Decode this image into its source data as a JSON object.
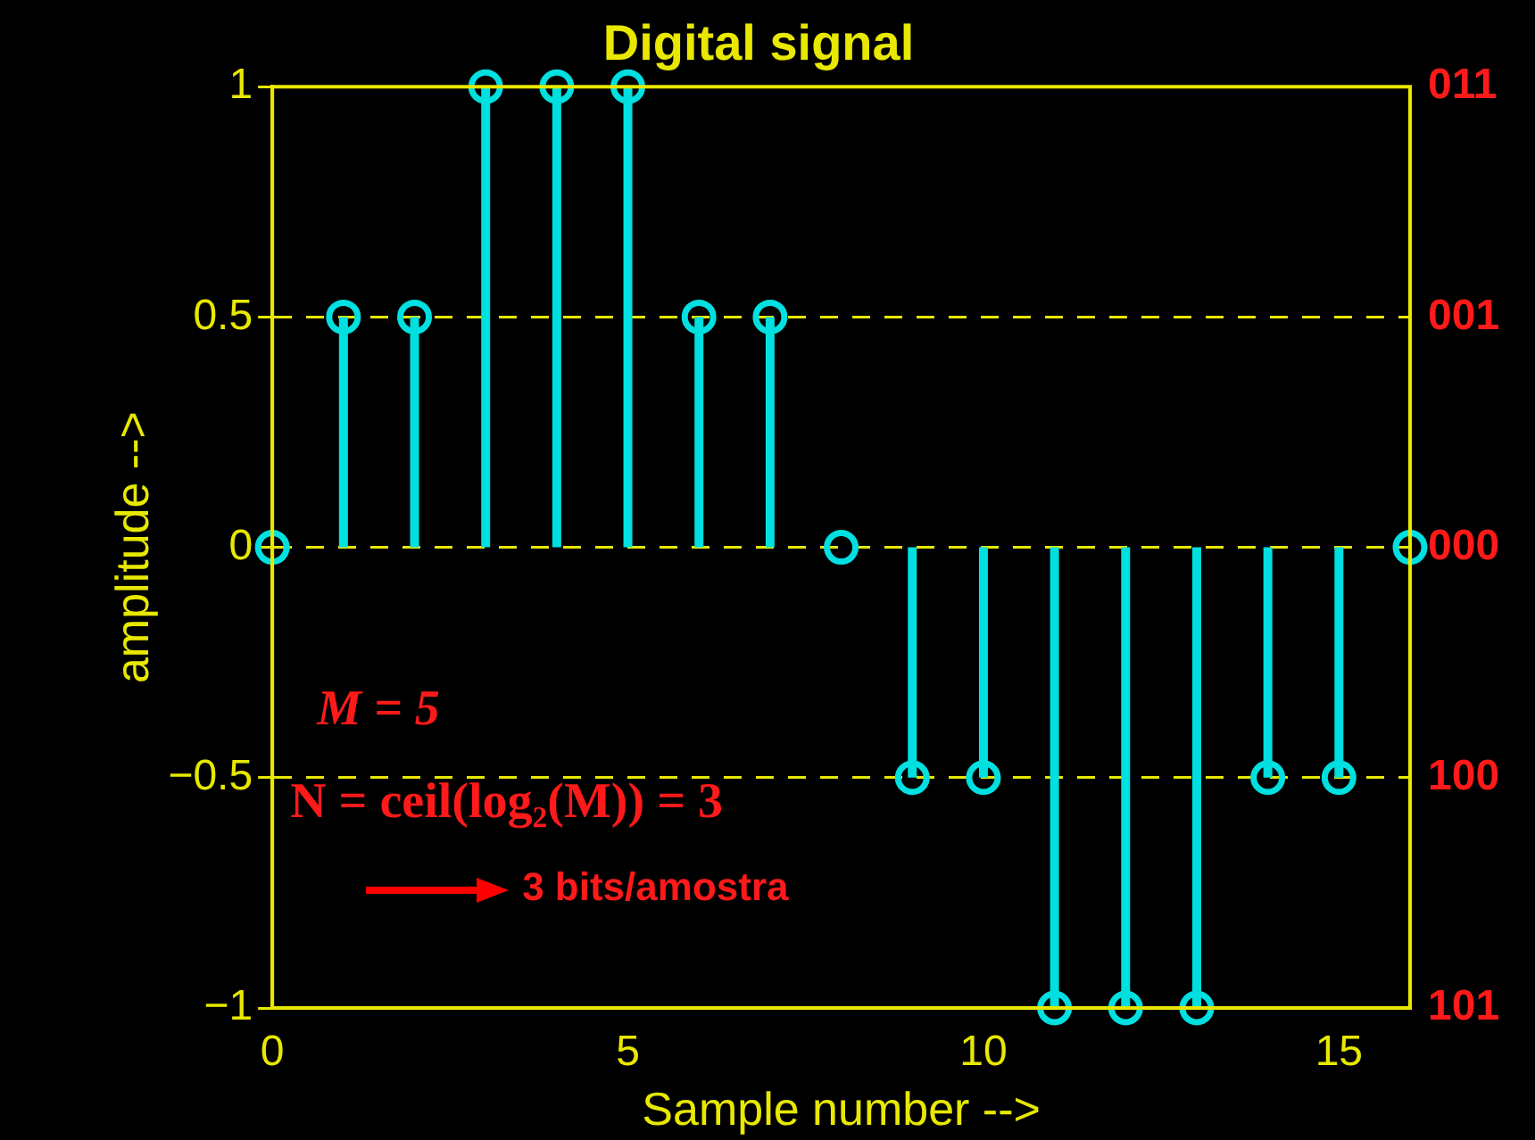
{
  "chart_data": {
    "type": "lollipop",
    "title": "Digital signal",
    "xlabel": "Sample number -->",
    "ylabel": "amplitude -->",
    "x": [
      0,
      1,
      2,
      3,
      4,
      5,
      6,
      7,
      8,
      9,
      10,
      11,
      12,
      13,
      14,
      15,
      16
    ],
    "values": [
      0,
      0.5,
      0.5,
      1,
      1,
      1,
      0.5,
      0.5,
      0,
      -0.5,
      -0.5,
      -1,
      -1,
      -1,
      -0.5,
      -0.5,
      0
    ],
    "color": "#00e0e0",
    "marker": "circle",
    "xlim": [
      0,
      16
    ],
    "xticks": [
      0,
      5,
      10,
      15
    ],
    "ylim": [
      -1,
      1
    ],
    "yticks": [
      -1,
      -0.5,
      0,
      0.5,
      1
    ],
    "grid": "y",
    "annotations": [
      "M = 5",
      "N = ceil(log₂(M)) = 3",
      "3 bits/amostra",
      "011",
      "001",
      "000",
      "100",
      "101"
    ]
  }
}
